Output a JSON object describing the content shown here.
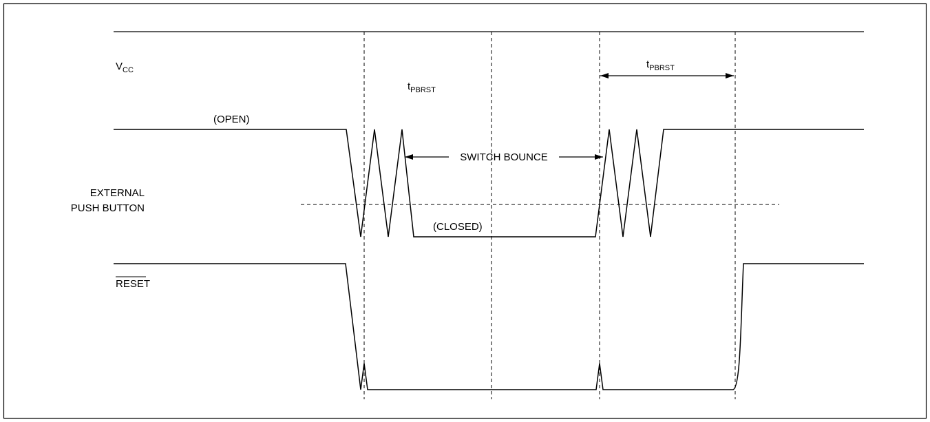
{
  "signals": {
    "vcc": {
      "main": "V",
      "sub": "CC"
    },
    "push_button": {
      "line1": "EXTERNAL",
      "line2": "PUSH BUTTON"
    },
    "reset": "RESET"
  },
  "states": {
    "open": "(OPEN)",
    "closed": "(CLOSED)"
  },
  "annotations": {
    "tpbrst_1": {
      "main": "t",
      "sub": "PBRST"
    },
    "tpbrst_2": {
      "main": "t",
      "sub": "PBRST"
    },
    "switch_bounce": "SWITCH BOUNCE"
  }
}
